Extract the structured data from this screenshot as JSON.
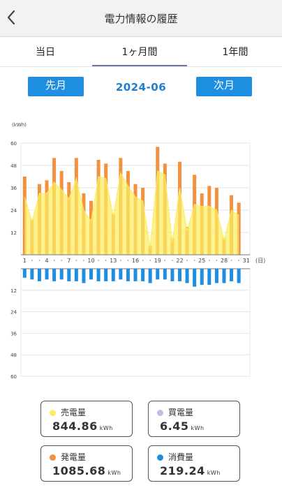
{
  "header": {
    "title": "電力情報の履歴",
    "back_icon": "chevron-left-icon"
  },
  "tabs": [
    {
      "label": "当日"
    },
    {
      "label": "1ヶ月間",
      "active": true
    },
    {
      "label": "1年間"
    }
  ],
  "nav": {
    "prev_label": "先月",
    "next_label": "次月",
    "month": "2024-06"
  },
  "colors": {
    "sold": "#fbee63",
    "purchased": "#c9b8e3",
    "generated": "#f2913f",
    "consumed": "#1e8ee0"
  },
  "chart_data": {
    "type": "bar",
    "y_unit_label": "(kWh)",
    "x_unit_label": "(日)",
    "x_ticks": [
      "1",
      "4",
      "7",
      "10",
      "13",
      "16",
      "19",
      "22",
      "25",
      "28",
      "31"
    ],
    "y_ticks_upper": [
      "12",
      "24",
      "36",
      "48",
      "60"
    ],
    "y_ticks_lower": [
      "12",
      "24",
      "36",
      "48",
      "60"
    ],
    "ylim": [
      0,
      60
    ],
    "days": [
      1,
      2,
      3,
      4,
      5,
      6,
      7,
      8,
      9,
      10,
      11,
      12,
      13,
      14,
      15,
      16,
      17,
      18,
      19,
      20,
      21,
      22,
      23,
      24,
      25,
      26,
      27,
      28,
      29,
      30,
      31
    ],
    "series": [
      {
        "key": "generated",
        "values": [
          42,
          19,
          38,
          40,
          52,
          45,
          39,
          52,
          33,
          29,
          51,
          49,
          22,
          52,
          45,
          38,
          36,
          5,
          58,
          49,
          9,
          50,
          15,
          43,
          33,
          37,
          36,
          9,
          32,
          28,
          0
        ]
      },
      {
        "key": "sold",
        "values": [
          31,
          18,
          33,
          33,
          39,
          35,
          30,
          41,
          24,
          18,
          42,
          41,
          21,
          44,
          37,
          31,
          29,
          4,
          45,
          43,
          7,
          36,
          13,
          27,
          26,
          26,
          24,
          8,
          24,
          21,
          0
        ]
      },
      {
        "key": "purchased",
        "values": [
          0.5,
          0.3,
          0.3,
          0.2,
          0.2,
          0.2,
          0.2,
          0.2,
          0.3,
          0.2,
          0.2,
          0.2,
          0.4,
          0.2,
          0.2,
          0.2,
          0.2,
          0.4,
          0.2,
          0.2,
          0.4,
          0.2,
          0.3,
          0.2,
          0.2,
          0.2,
          0.2,
          0.4,
          0.2,
          0.2,
          0
        ]
      },
      {
        "key": "consumed",
        "values": [
          5,
          6,
          7,
          6,
          7,
          6,
          7,
          7,
          8,
          6,
          7,
          7,
          7,
          6,
          7,
          7,
          7,
          8,
          6,
          6,
          7,
          7,
          8,
          10,
          9,
          9,
          8,
          8,
          7,
          8,
          0
        ]
      }
    ]
  },
  "summary": {
    "sold": {
      "label": "売電量",
      "value": "844.86",
      "unit": "kWh"
    },
    "purchased": {
      "label": "買電量",
      "value": "6.45",
      "unit": "kWh"
    },
    "generated": {
      "label": "発電量",
      "value": "1085.68",
      "unit": "kWh"
    },
    "consumed": {
      "label": "消費量",
      "value": "219.24",
      "unit": "kWh"
    }
  }
}
